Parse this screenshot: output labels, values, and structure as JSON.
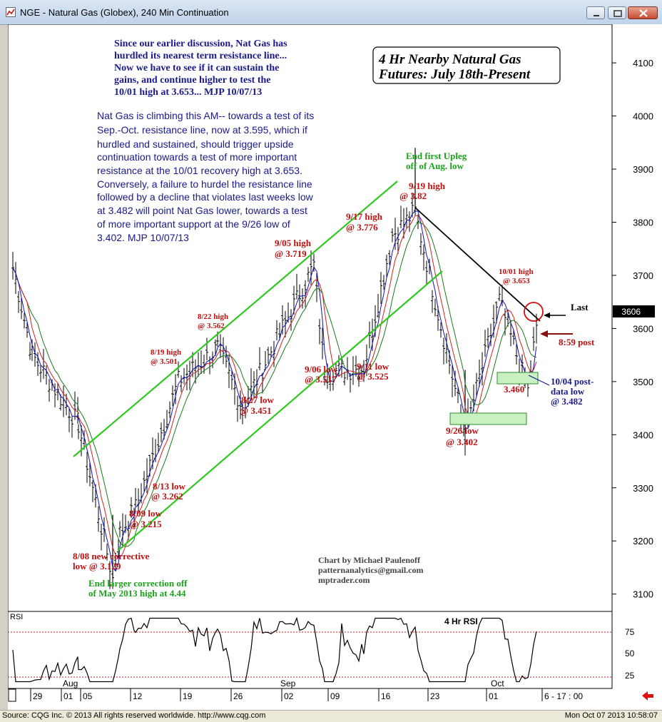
{
  "window": {
    "title": "NGE - Natural Gas (Globex), 240 Min Continuation"
  },
  "footer": {
    "source": "Source: CQG Inc. © 2013 All rights reserved worldwide. http://www.cqg.com",
    "timestamp": "Mon Oct 07 2013 10:58:07"
  },
  "colors": {
    "up_channel": "#2ec81f",
    "ma_red": "#d22020",
    "ma_blue": "#1010c0",
    "ma_green": "#1a7a1a",
    "bars": "#000000",
    "annot_red": "#c01010",
    "annot_green": "#1aa21a",
    "annot_navy": "#1a1a8c",
    "box_fill": "#c8f0c0"
  },
  "chart_data": [
    {
      "type": "line",
      "title": "4 Hr Nearby Natural Gas Futures: July 18th-Present",
      "ylim": [
        3070,
        4170
      ],
      "yticks": [
        "4100",
        "4000",
        "3900",
        "3800",
        "3700",
        "3600",
        "3500",
        "3400",
        "3300",
        "3200",
        "3100"
      ],
      "last_price_label": "3606",
      "xticks": [
        "29",
        "01",
        "05",
        "12",
        "19",
        "26",
        "02",
        "09",
        "16",
        "23",
        "01",
        "6 - 17 : 00"
      ],
      "month_labels": [
        "Aug",
        "Sep",
        "Oct"
      ],
      "series": [
        {
          "name": "",
          "points": [
            [
              "Jul 29",
              3715
            ],
            [
              "Aug 01",
              3550
            ],
            [
              "Aug 05",
              3420
            ],
            [
              "Aug 08",
              3129
            ],
            [
              "Aug 09",
              3215
            ],
            [
              "Aug 13",
              3262
            ],
            [
              "Aug 19",
              3501
            ],
            [
              "Aug 22",
              3562
            ],
            [
              "Aug 27",
              3451
            ],
            [
              "Sep 05",
              3719
            ],
            [
              "Sep 06",
              3517
            ],
            [
              "Sep 11",
              3525
            ],
            [
              "Sep 17",
              3776
            ],
            [
              "Sep 19",
              3820
            ],
            [
              "Sep 26",
              3402
            ],
            [
              "Oct 01",
              3653
            ],
            [
              "Oct 04",
              3482
            ],
            [
              "Oct 07",
              3606
            ]
          ]
        }
      ],
      "annotations": {
        "header_note": "Since our earlier discussion, Nat Gas has hurdled its nearest term resistance line... Now we have to see if it can sustain the gains, and continue higher to test the 10/01 high at 3.653... MJP  10/07/13",
        "header_lines": [
          "Since our earlier discussion, Nat Gas has",
          "hurdled its nearest term resistance line...",
          "Now we have to see if it can sustain the",
          "gains, and continue higher to test the",
          "10/01 high at 3.653... MJP  10/07/13"
        ],
        "body_lines": [
          "Nat Gas is climbing this AM-- towards a test of its",
          "Sep.-Oct. resistance line, now at 3.595, which if",
          "hurdled and sustained, should trigger upside",
          "continuation towards a test of more important",
          "resistance at the 10/01 recovery high at 3.653.",
          "Conversely, a failure to hurdel the resistance line",
          "followed by a decline that violates last weeks low",
          "at 3.482 will point Nat Gas lower, towards a test",
          "of more important support at the 9/26 low of",
          "3.402. MJP 10/07/13"
        ],
        "title_box": [
          "4 Hr Nearby Natural Gas",
          "Futures: July 18th-Present"
        ],
        "end_upleg": [
          "End first Upleg",
          "off of Aug. low"
        ],
        "high_919": [
          "9/19 high",
          "@ 3.82"
        ],
        "high_917": [
          "9/17 high",
          "@ 3.776"
        ],
        "high_905": [
          "9/05 high",
          "@ 3.719"
        ],
        "high_822": [
          "8/22 high",
          "@ 3.562"
        ],
        "high_819": [
          "8/19 high",
          "@ 3.501"
        ],
        "high_1001": [
          "10/01 high",
          "@ 3.653"
        ],
        "last_label": "Last",
        "post_label": "8:59 post",
        "low_906": [
          "9/06 low",
          "@ 3.517"
        ],
        "low_911": [
          "9/11 low",
          "@ 3.525"
        ],
        "low_827": [
          "8/27 low",
          "@ 3.451"
        ],
        "low_813": [
          "8/13 low",
          "@ 3.262"
        ],
        "low_809": [
          "8/09 low",
          "@ 3.215"
        ],
        "low_808": [
          "8/08 new corrective",
          "low @ 3.129"
        ],
        "end_larger": [
          "End larger correction off",
          "of May 2013 high at 4.44"
        ],
        "low_926": [
          "9/26 low",
          "@ 3.402"
        ],
        "val_3460": "3.460",
        "low_1004": [
          "10/04 post-",
          "data low",
          "@ 3.482"
        ],
        "credits": [
          "Chart by Michael Paulenoff",
          "patternanalytics@gmail.com",
          "mptrader.com"
        ]
      }
    },
    {
      "type": "line",
      "title": "4 Hr RSI",
      "name": "RSI",
      "ylim": [
        0,
        100
      ],
      "yticks": [
        "75",
        "50",
        "25"
      ],
      "levels": [
        75,
        25
      ]
    }
  ]
}
